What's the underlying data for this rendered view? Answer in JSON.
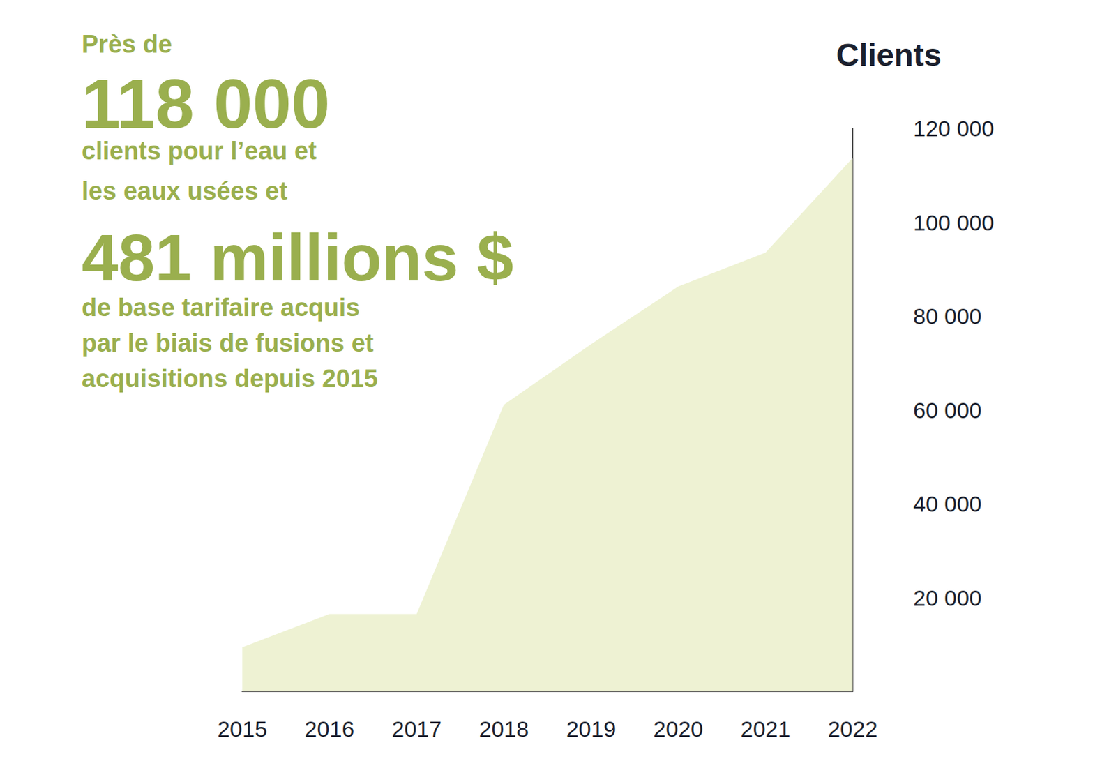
{
  "chart_data": {
    "type": "area",
    "y_label": "Clients",
    "annotations": [
      "Près de",
      "118 000",
      "clients pour l’eau et",
      "les eaux usées et",
      "481 millions $",
      "de base tarifaire acquis",
      "par le biais de fusions et",
      "acquisitions depuis 2015"
    ],
    "categories": [
      "2015",
      "2016",
      "2017",
      "2018",
      "2019",
      "2020",
      "2021",
      "2022"
    ],
    "values": [
      9400,
      16500,
      16500,
      61100,
      74000,
      86300,
      93500,
      113700
    ],
    "color": "#eef2d3",
    "ylim": [
      0,
      120000
    ],
    "yticks": [
      {
        "value": 20000,
        "label": "20 000"
      },
      {
        "value": 40000,
        "label": "40 000"
      },
      {
        "value": 60000,
        "label": "60 000"
      },
      {
        "value": 80000,
        "label": "80 000"
      },
      {
        "value": 100000,
        "label": "100 000"
      },
      {
        "value": 120000,
        "label": "120 000"
      }
    ],
    "grid": false
  }
}
